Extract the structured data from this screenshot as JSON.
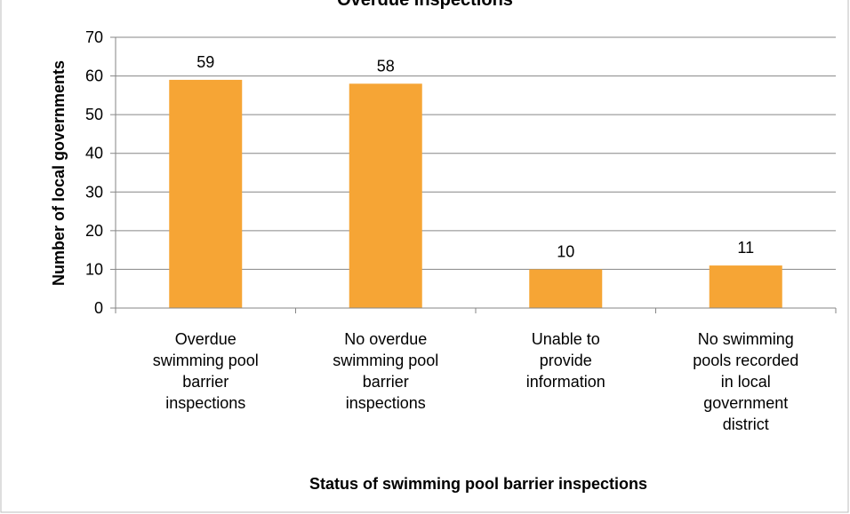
{
  "chart_data": {
    "type": "bar",
    "title": "Overdue inspections",
    "x_label": "Status of swimming pool barrier inspections",
    "y_label": "Number of local governments",
    "categories": [
      "Overdue\nswimming pool\nbarrier\ninspections",
      "No overdue\nswimming pool\nbarrier\ninspections",
      "Unable to\nprovide\ninformation",
      "No swimming\npools recorded\nin local\ngovernment\ndistrict"
    ],
    "values": [
      59,
      58,
      10,
      11
    ],
    "color": "#f6a535",
    "ylim": [
      0,
      70
    ],
    "yticks": [
      0,
      10,
      20,
      30,
      40,
      50,
      60,
      70
    ],
    "grid": true
  }
}
